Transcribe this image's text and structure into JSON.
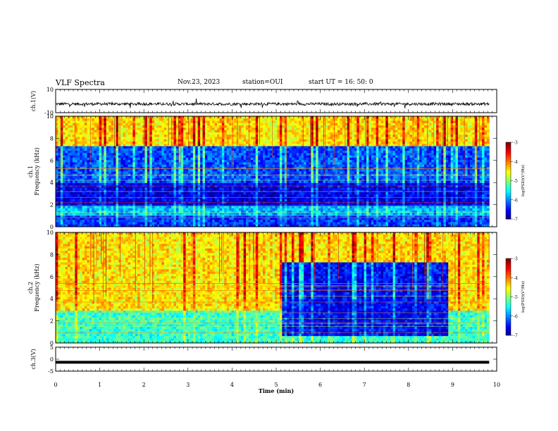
{
  "header": {
    "title": "VLF Spectra",
    "date": "Nov.23, 2023",
    "station": "station=OUI",
    "start": "start  UT =   16: 50: 0"
  },
  "chart_data": [
    {
      "type": "line",
      "name": "ch1-waveform",
      "ylabel": "ch.1(V)",
      "ylim": [
        -10,
        10
      ],
      "yticks": [
        "10",
        "-10"
      ],
      "xlim": [
        0,
        9.83
      ],
      "baseline": -2.5,
      "noise_amplitude": 1.2
    },
    {
      "type": "heatmap",
      "name": "ch1-spectrogram",
      "ylabel": "ch.1\nFrequency (kHz)",
      "ylim": [
        0,
        10
      ],
      "yticks": [
        "0",
        "2",
        "4",
        "6",
        "8",
        "10"
      ],
      "xlim": [
        0,
        9.83
      ],
      "colorbar": {
        "label": "log(PSD)(V²/Hz)",
        "ticks": [
          "-3",
          "-4",
          "-5",
          "-6",
          "-7"
        ],
        "range": [
          -7,
          -3
        ]
      },
      "bands_khz": [
        {
          "from": 0,
          "to": 1.0,
          "level": -6.3
        },
        {
          "from": 1.0,
          "to": 1.8,
          "level": -5.8
        },
        {
          "from": 1.8,
          "to": 4.0,
          "level": -6.6
        },
        {
          "from": 4.0,
          "to": 7.2,
          "level": -6.2
        },
        {
          "from": 7.2,
          "to": 10,
          "level": -4.4
        }
      ]
    },
    {
      "type": "heatmap",
      "name": "ch2-spectrogram",
      "ylabel": "ch.2\nFrequency (kHz)",
      "ylim": [
        0,
        10
      ],
      "yticks": [
        "0",
        "2",
        "4",
        "6",
        "8",
        "10"
      ],
      "xlim": [
        0,
        9.83
      ],
      "colorbar": {
        "label": "log(PSD)(V²/Hz)",
        "ticks": [
          "-3",
          "-4",
          "-5",
          "-6",
          "-7"
        ],
        "range": [
          -7,
          -3
        ]
      },
      "quiet_interval_min": [
        5.1,
        8.85
      ],
      "bands_khz": [
        {
          "from": 0,
          "to": 3.0,
          "level": -5.3
        },
        {
          "from": 3.0,
          "to": 10,
          "level": -4.4
        }
      ]
    },
    {
      "type": "line",
      "name": "ch3-waveform",
      "ylabel": "ch.3(V)",
      "ylim": [
        -5,
        5
      ],
      "yticks": [
        "5",
        "0",
        "-5"
      ],
      "xlim": [
        0,
        9.83
      ],
      "value": -1.3
    }
  ],
  "xaxis": {
    "label": "Time (min)",
    "ticks": [
      "0",
      "1",
      "2",
      "3",
      "4",
      "5",
      "6",
      "7",
      "8",
      "9",
      "10"
    ],
    "range": [
      0,
      10
    ]
  },
  "colors": {
    "waveform": "#000000",
    "axis": "#000000"
  }
}
